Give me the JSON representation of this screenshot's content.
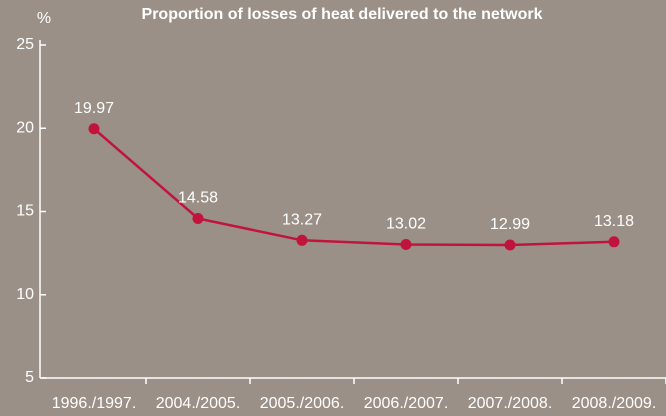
{
  "chart_data": {
    "type": "line",
    "title": "Proportion of losses of heat delivered to the network",
    "y_label": "%",
    "categories": [
      "1996./1997.",
      "2004./2005.",
      "2005./2006.",
      "2006./2007.",
      "2007./2008.",
      "2008./2009."
    ],
    "values": [
      19.97,
      14.58,
      13.27,
      13.02,
      12.99,
      13.18
    ],
    "color": "#c0143c",
    "ylim": [
      5,
      25
    ],
    "yticks": [
      5,
      10,
      15,
      20,
      25
    ]
  }
}
